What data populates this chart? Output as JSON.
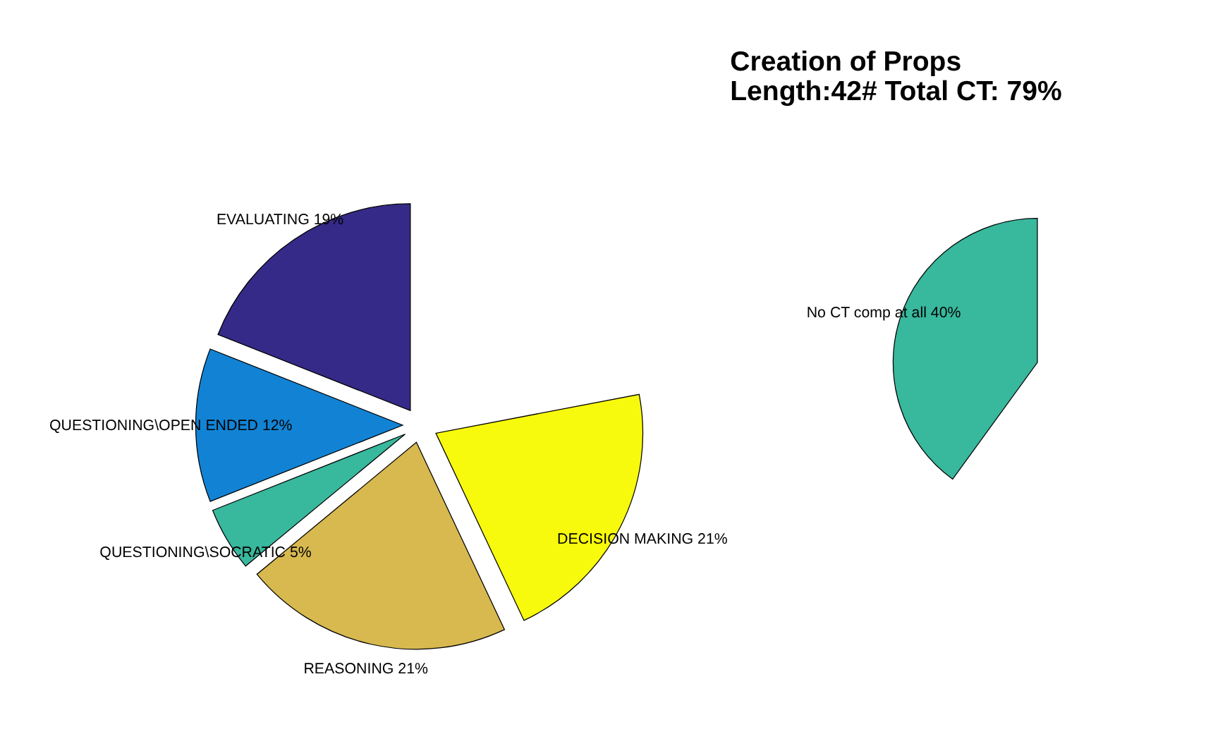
{
  "chart_data": [
    {
      "type": "pie",
      "categories": [
        "EVALUATING",
        "QUESTIONING\\OPEN ENDED",
        "QUESTIONING\\SOCRATIC",
        "REASONING",
        "DECISION MAKING"
      ],
      "values": [
        19,
        12,
        5,
        21,
        21
      ],
      "value_labels": [
        "19%",
        "12%",
        "5%",
        "21%",
        "21%"
      ],
      "colors": [
        "#352a87",
        "#1283d4",
        "#38b89d",
        "#d7b94f",
        "#f8fa0d"
      ]
    },
    {
      "type": "pie",
      "title": [
        "Creation of Props",
        "Length:42# Total CT: 79%"
      ],
      "categories": [
        "No CT comp at all"
      ],
      "values": [
        40
      ],
      "value_labels": [
        "40%"
      ],
      "colors": [
        "#38b89d"
      ]
    }
  ]
}
